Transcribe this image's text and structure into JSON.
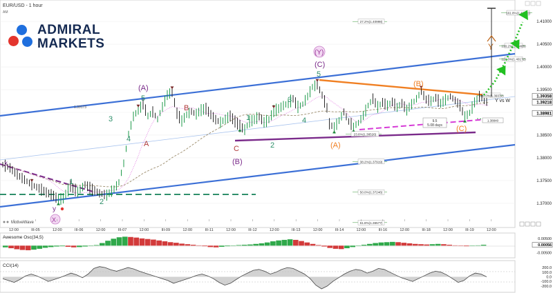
{
  "header": {
    "symbol_title": "EUR/USD - 1 hour",
    "session": "AM"
  },
  "brand": {
    "line1": "ADMIRAL",
    "line2": "MARKETS"
  },
  "watermark": "MotiveWave",
  "colors": {
    "accent_blue": "#3b6fd6",
    "orange": "#f07f22",
    "purple": "#7a2a8a",
    "magenta": "#d63ad6",
    "green": "#36b34a",
    "teal": "#2e8f6a"
  },
  "chart_data": [
    {
      "type": "line",
      "title": "EUR/USD - 1 hour",
      "x_ticks": [
        "12:00",
        "III-05",
        "12:00",
        "III-06",
        "12:00",
        "III-07",
        "12:00",
        "III-09",
        "12:00",
        "III-11",
        "12:00",
        "III-12",
        "12:00",
        "III-13",
        "12:00",
        "III-14",
        "12:00",
        "III-16",
        "12:00",
        "III-18",
        "12:00",
        "III-19",
        "12:00"
      ],
      "y_ticks": [
        "1.41000",
        "1.40500",
        "1.40000",
        "1.39500",
        "1.39000",
        "1.38500",
        "1.38000",
        "1.37500",
        "1.37000"
      ],
      "ylim": [
        1.3665,
        1.4135
      ],
      "price_labels": [
        "1.39358",
        "1.39218",
        "1.38981"
      ],
      "fib_levels": [
        {
          "label": "27.2%(1.40998)",
          "value": 1.40998
        },
        {
          "label": "38.2%(1.37919)",
          "value": 1.37919
        },
        {
          "label": "50.0%(1.37246)",
          "value": 1.37246
        },
        {
          "label": "61.8%(1.36577)",
          "value": 1.36577
        },
        {
          "label": "23.6%(1.38526)",
          "value": 1.38526
        },
        {
          "label": "100.0%(1.39372)",
          "value": 1.39372
        },
        {
          "label": "138.2%(1.40465)",
          "value": 1.40465
        },
        {
          "label": "161.8%(1.41190)",
          "value": 1.4119
        },
        {
          "label": "123.6%(1.40172)",
          "value": 1.40172
        }
      ],
      "level_label": "1.39173",
      "projection_labels": [
        "1.38840"
      ],
      "wave_labels": [
        "(A)",
        "(B)",
        "(C)",
        "(Y)",
        "(A)",
        "(B)",
        "(C)",
        "5",
        "3",
        "1",
        "2",
        "4",
        "1",
        "2",
        "3",
        "4",
        "5",
        "A",
        "B",
        "C",
        "X",
        "Y",
        "y",
        "x",
        "Y vs W"
      ],
      "time_box": [
        "9.5",
        "5.08 days"
      ],
      "series": {
        "price": [
          [
            0,
            1.3785
          ],
          [
            3,
            1.3778
          ],
          [
            6,
            1.3763
          ],
          [
            9,
            1.3752
          ],
          [
            12,
            1.3741
          ],
          [
            15,
            1.3733
          ],
          [
            18,
            1.3724
          ],
          [
            21,
            1.3717
          ],
          [
            23,
            1.3708
          ],
          [
            25,
            1.3711
          ],
          [
            28,
            1.3738
          ],
          [
            31,
            1.3725
          ],
          [
            34,
            1.3741
          ],
          [
            37,
            1.373
          ],
          [
            40,
            1.3722
          ],
          [
            43,
            1.3718
          ],
          [
            46,
            1.3731
          ],
          [
            48,
            1.3746
          ],
          [
            50,
            1.3788
          ],
          [
            52,
            1.3852
          ],
          [
            54,
            1.3891
          ],
          [
            56,
            1.3905
          ],
          [
            58,
            1.3918
          ],
          [
            60,
            1.3892
          ],
          [
            62,
            1.3901
          ],
          [
            64,
            1.3885
          ],
          [
            66,
            1.3912
          ],
          [
            68,
            1.3938
          ],
          [
            70,
            1.3945
          ],
          [
            72,
            1.3898
          ],
          [
            74,
            1.3881
          ],
          [
            76,
            1.3895
          ],
          [
            78,
            1.3902
          ],
          [
            80,
            1.3896
          ],
          [
            82,
            1.3905
          ],
          [
            84,
            1.3908
          ],
          [
            86,
            1.3895
          ],
          [
            88,
            1.3884
          ],
          [
            90,
            1.3878
          ],
          [
            92,
            1.3885
          ],
          [
            94,
            1.3892
          ],
          [
            96,
            1.388
          ],
          [
            98,
            1.387
          ],
          [
            100,
            1.3862
          ],
          [
            102,
            1.388
          ],
          [
            104,
            1.3884
          ],
          [
            106,
            1.3891
          ],
          [
            108,
            1.3878
          ],
          [
            110,
            1.3884
          ],
          [
            112,
            1.3903
          ],
          [
            114,
            1.3908
          ],
          [
            116,
            1.3915
          ],
          [
            118,
            1.392
          ],
          [
            120,
            1.393
          ],
          [
            122,
            1.3912
          ],
          [
            124,
            1.3918
          ],
          [
            126,
            1.3935
          ],
          [
            128,
            1.3956
          ],
          [
            130,
            1.3961
          ],
          [
            132,
            1.3938
          ],
          [
            134,
            1.391
          ],
          [
            135,
            1.3875
          ],
          [
            137,
            1.3866
          ],
          [
            139,
            1.3882
          ],
          [
            141,
            1.3901
          ],
          [
            143,
            1.388
          ],
          [
            145,
            1.3869
          ],
          [
            147,
            1.3877
          ],
          [
            149,
            1.3893
          ],
          [
            151,
            1.3915
          ],
          [
            153,
            1.393
          ],
          [
            155,
            1.3912
          ],
          [
            157,
            1.3922
          ],
          [
            159,
            1.3915
          ],
          [
            161,
            1.3923
          ],
          [
            163,
            1.3911
          ],
          [
            165,
            1.392
          ],
          [
            167,
            1.3905
          ],
          [
            169,
            1.3918
          ],
          [
            171,
            1.393
          ],
          [
            173,
            1.3946
          ],
          [
            175,
            1.3928
          ],
          [
            177,
            1.3925
          ],
          [
            179,
            1.3932
          ],
          [
            181,
            1.392
          ],
          [
            183,
            1.3928
          ],
          [
            185,
            1.3935
          ],
          [
            187,
            1.3926
          ],
          [
            189,
            1.3915
          ],
          [
            191,
            1.389
          ],
          [
            193,
            1.3899
          ],
          [
            195,
            1.3922
          ],
          [
            197,
            1.3935
          ],
          [
            199,
            1.3928
          ],
          [
            201,
            1.3922
          ]
        ]
      }
    },
    {
      "type": "bar",
      "title": "Awesome Osc(34,5)",
      "y_ticks": [
        "0.00500",
        "0.00000",
        "-0.00500"
      ],
      "ylim": [
        -0.008,
        0.0078
      ],
      "price_labels": [
        "0.00056"
      ],
      "values": [
        -0.0012,
        -0.0018,
        -0.0025,
        -0.003,
        -0.0032,
        -0.0028,
        -0.0022,
        -0.0015,
        -0.001,
        -0.0006,
        -0.0004,
        -0.0008,
        -0.0012,
        -0.001,
        -0.0006,
        -0.0002,
        0.0004,
        0.0018,
        0.0034,
        0.0048,
        0.0058,
        0.0062,
        0.006,
        0.0056,
        0.005,
        0.0046,
        0.0042,
        0.0036,
        0.003,
        0.0024,
        0.002,
        0.0014,
        0.001,
        0.0006,
        0.0002,
        -0.0004,
        -0.001,
        -0.0012,
        -0.0008,
        -0.0004,
        0.0,
        0.0004,
        0.0006,
        0.0008,
        0.0012,
        0.0016,
        0.0022,
        0.003,
        0.0036,
        0.004,
        0.0044,
        0.004,
        0.0032,
        0.0022,
        0.0012,
        0.0004,
        -0.0006,
        -0.0016,
        -0.0022,
        -0.0024,
        -0.0018,
        -0.001,
        -0.0002,
        0.0006,
        0.0012,
        0.0018,
        0.0022,
        0.0024,
        0.0026,
        0.0024,
        0.002,
        0.0016,
        0.0012,
        0.001,
        0.0008,
        0.001,
        0.0012,
        0.001,
        0.0006,
        0.0002,
        -0.0002,
        -0.0004,
        -0.0002,
        0.0002,
        0.0006
      ]
    },
    {
      "type": "line",
      "title": "CCI(14)",
      "y_ticks": [
        "200.0",
        "100.0",
        "0.0",
        "-100.0",
        "-200.0"
      ],
      "ylim": [
        -320,
        320
      ],
      "values": [
        -40,
        -80,
        -120,
        -60,
        20,
        60,
        20,
        -40,
        -100,
        -60,
        -20,
        30,
        80,
        40,
        -20,
        60,
        180,
        220,
        200,
        150,
        120,
        160,
        200,
        170,
        120,
        80,
        40,
        0,
        -40,
        -80,
        -140,
        -100,
        -60,
        -20,
        30,
        60,
        20,
        -40,
        -120,
        -180,
        -140,
        -60,
        20,
        80,
        140,
        160,
        120,
        60,
        100,
        160,
        200,
        180,
        120,
        60,
        -40,
        -180,
        -260,
        -200,
        -100,
        -20,
        60,
        120,
        160,
        140,
        80,
        120,
        180,
        160,
        100,
        40,
        -20,
        -60,
        -100,
        -40,
        20,
        80,
        120,
        100,
        40,
        -40,
        -120,
        -80,
        20,
        80,
        60,
        0
      ]
    }
  ]
}
